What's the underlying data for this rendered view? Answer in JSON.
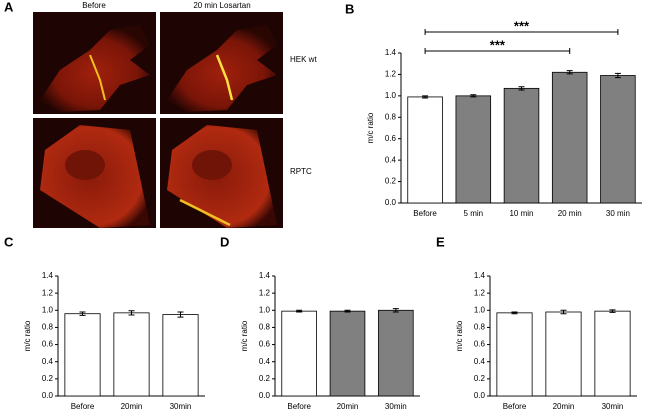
{
  "panel_a": {
    "label": "A",
    "columns": [
      "Before",
      "20 min Losartan"
    ],
    "rows": [
      "HEK wt",
      "RPTC"
    ]
  },
  "chart_data": [
    {
      "panel": "B",
      "type": "bar",
      "ylabel": "m/c ratio",
      "categories": [
        "Before",
        "5 min",
        "10 min",
        "20 min",
        "30 min"
      ],
      "values": [
        0.99,
        1.0,
        1.07,
        1.22,
        1.19
      ],
      "errors": [
        0.01,
        0.01,
        0.015,
        0.015,
        0.02
      ],
      "colors": [
        "#ffffff",
        "#808080",
        "#808080",
        "#808080",
        "#808080"
      ],
      "ylim": [
        0,
        1.4
      ],
      "yticks": [
        {
          "value": 0,
          "label": "0.0"
        },
        0.2,
        0.4,
        0.6,
        0.8,
        {
          "value": 1,
          "label": "1.0"
        },
        1.2,
        1.4
      ],
      "annotations": [
        {
          "text": "***",
          "from": "Before",
          "to": "30 min"
        },
        {
          "text": "***",
          "from": "Before",
          "to": "20 min"
        }
      ]
    },
    {
      "panel": "C",
      "type": "bar",
      "ylabel": "m/c ratio",
      "categories": [
        "Before",
        "20min",
        "30min"
      ],
      "values": [
        0.96,
        0.97,
        0.95
      ],
      "errors": [
        0.02,
        0.025,
        0.03
      ],
      "colors": [
        "#ffffff",
        "#ffffff",
        "#ffffff"
      ],
      "ylim": [
        0,
        1.4
      ],
      "yticks": [
        {
          "value": 0,
          "label": "0.0"
        },
        0.2,
        0.4,
        0.6,
        0.8,
        {
          "value": 1,
          "label": "1.0"
        },
        1.2,
        1.4
      ]
    },
    {
      "panel": "D",
      "type": "bar",
      "ylabel": "m/c ratio",
      "categories": [
        "Before",
        "20min",
        "30min"
      ],
      "values": [
        0.99,
        0.99,
        1.0
      ],
      "errors": [
        0.01,
        0.01,
        0.02
      ],
      "colors": [
        "#ffffff",
        "#808080",
        "#808080"
      ],
      "ylim": [
        0,
        1.4
      ],
      "yticks": [
        {
          "value": 0,
          "label": "0.0"
        },
        0.2,
        0.4,
        0.6,
        0.8,
        {
          "value": 1,
          "label": "1.0"
        },
        1.2,
        1.4
      ]
    },
    {
      "panel": "E",
      "type": "bar",
      "ylabel": "m/c ratio",
      "categories": [
        "Before",
        "20min",
        "30min"
      ],
      "values": [
        0.97,
        0.98,
        0.99
      ],
      "errors": [
        0.01,
        0.02,
        0.015
      ],
      "colors": [
        "#ffffff",
        "#ffffff",
        "#ffffff"
      ],
      "ylim": [
        0,
        1.4
      ],
      "yticks": [
        {
          "value": 0,
          "label": "0.0"
        },
        0.2,
        0.4,
        0.6,
        0.8,
        {
          "value": 1,
          "label": "1.0"
        },
        1.2,
        1.4
      ]
    }
  ]
}
